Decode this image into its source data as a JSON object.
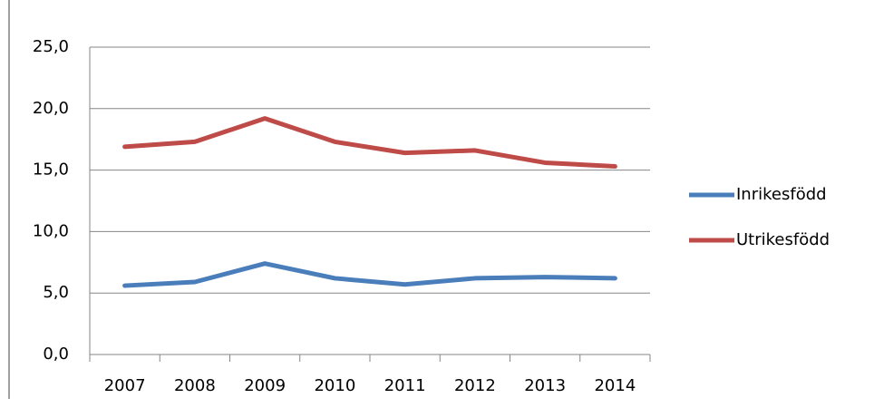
{
  "chart_data": {
    "type": "line",
    "categories": [
      "2007",
      "2008",
      "2009",
      "2010",
      "2011",
      "2012",
      "2013",
      "2014"
    ],
    "series": [
      {
        "name": "Inrikesfödd",
        "color": "#4a7ebb",
        "values": [
          5.6,
          5.9,
          7.4,
          6.2,
          5.7,
          6.2,
          6.3,
          6.2
        ]
      },
      {
        "name": "Utrikesfödd",
        "color": "#be4b48",
        "values": [
          16.9,
          17.3,
          19.2,
          17.3,
          16.4,
          16.6,
          15.6,
          15.3
        ]
      }
    ],
    "ylim": [
      0,
      25
    ],
    "yticks": [
      {
        "value": 0,
        "label": "0,0"
      },
      {
        "value": 5,
        "label": "5,0"
      },
      {
        "value": 10,
        "label": "10,0"
      },
      {
        "value": 15,
        "label": "15,0"
      },
      {
        "value": 20,
        "label": "20,0"
      },
      {
        "value": 25,
        "label": "25,0"
      }
    ],
    "grid": true,
    "legend": "right"
  }
}
